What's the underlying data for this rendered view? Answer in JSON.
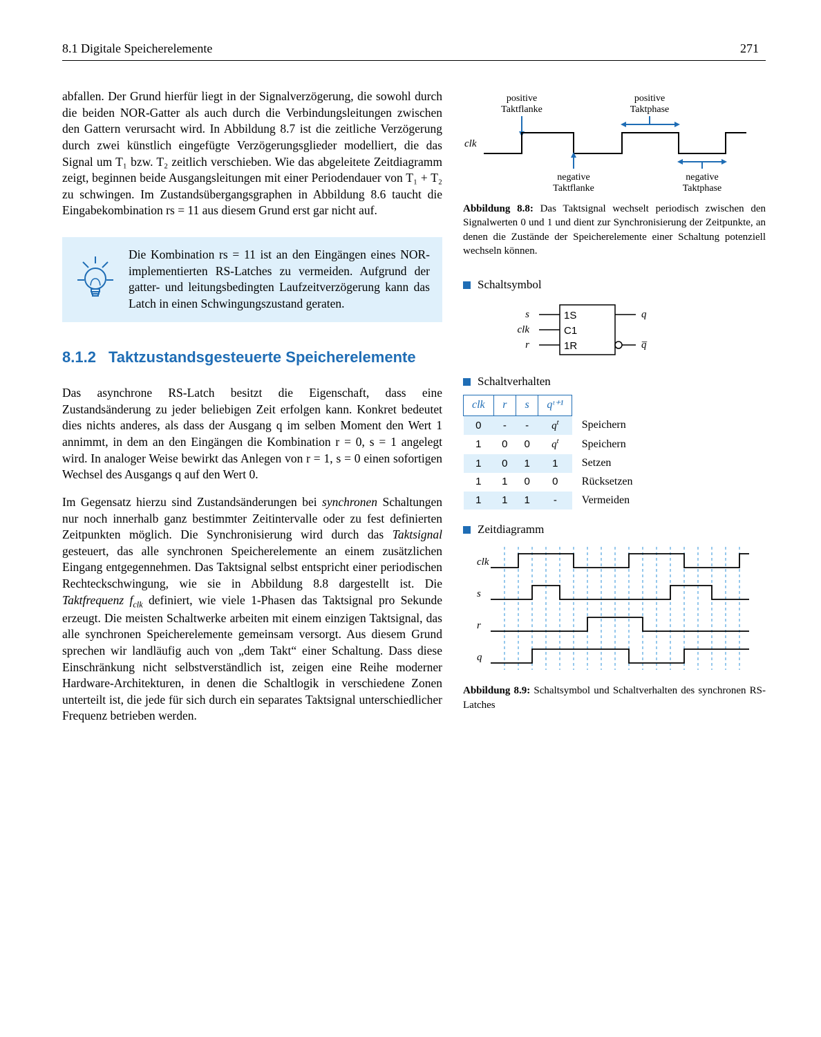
{
  "header": {
    "section": "8.1  Digitale Speicherelemente",
    "page": "271"
  },
  "left": {
    "para1": "abfallen. Der Grund hierfür liegt in der Signalverzögerung, die sowohl durch die beiden NOR-Gatter als auch durch die Verbindungsleitungen zwischen den Gattern verursacht wird. In Abbildung 8.7 ist die zeitliche Verzögerung durch zwei künstlich eingefügte Verzögerungsglieder modelliert, die das Signal um T₁ bzw. T₂ zeitlich verschieben. Wie das abgeleitete Zeitdiagramm zeigt, beginnen beide Ausgangsleitungen mit einer Periodendauer von T₁ + T₂ zu schwingen. Im Zustandsübergangsgraphen in Abbildung 8.6 taucht die Eingabekombination rs = 11 aus diesem Grund erst gar nicht auf.",
    "tip": "Die Kombination rs = 11 ist an den Eingängen eines NOR-implementierten RS-Latches zu vermeiden. Aufgrund der gatter- und leitungsbedingten Laufzeitverzögerung kann das Latch in einen Schwingungszustand geraten.",
    "heading_num": "8.1.2",
    "heading_text": "Taktzustandsgesteuerte Speicherelemente",
    "para2": "Das asynchrone RS-Latch besitzt die Eigenschaft, dass eine Zustandsänderung zu jeder beliebigen Zeit erfolgen kann. Konkret bedeutet dies nichts anderes, als dass der Ausgang q im selben Moment den Wert 1 annimmt, in dem an den Eingängen die Kombination r = 0, s = 1 angelegt wird. In analoger Weise bewirkt das Anlegen von r = 1, s = 0 einen sofortigen Wechsel des Ausgangs q auf den Wert 0.",
    "para3_a": "Im Gegensatz hierzu sind Zustandsänderungen bei ",
    "para3_b": "synchronen",
    "para3_c": " Schaltungen nur noch innerhalb ganz bestimmter Zeitintervalle oder zu fest definierten Zeitpunkten möglich. Die Synchronisierung wird durch das ",
    "para3_d": "Taktsignal",
    "para3_e": " gesteuert, das alle synchronen Speicherelemente an einem zusätzlichen Eingang entgegennehmen. Das Taktsignal selbst entspricht einer periodischen Rechteckschwingung, wie sie in Abbildung 8.8 dargestellt ist. Die ",
    "para3_f": "Taktfrequenz f",
    "para3_g": " definiert, wie viele 1-Phasen das Taktsignal pro Sekunde erzeugt. Die meisten Schaltwerke arbeiten mit einem einzigen Taktsignal, das alle synchronen Speicherelemente gemeinsam versorgt. Aus diesem Grund sprechen wir landläufig auch von „dem Takt“ einer Schaltung. Dass diese Einschränkung nicht selbstverständlich ist, zeigen eine Reihe moderner Hardware-Architekturen, in denen die Schaltlogik in verschiedene Zonen unterteilt ist, die jede für sich durch ein separates Taktsignal unterschiedlicher Frequenz betrieben werden."
  },
  "right": {
    "fig88": {
      "labels": {
        "pos_flanke": "positive\nTaktflanke",
        "pos_phase": "positive\nTaktphase",
        "neg_flanke": "negative\nTaktflanke",
        "neg_phase": "negative\nTaktphase",
        "clk": "clk"
      },
      "caption_tag": "Abbildung 8.8:",
      "caption": " Das Taktsignal wechselt periodisch zwischen den Signalwerten 0 und 1 und dient zur Synchronisierung der Zeitpunkte, an denen die Zustände der Speicherelemente einer Schaltung potenziell wechseln können.",
      "colors": {
        "accent": "#1f6db5",
        "line": "#000000"
      }
    },
    "markers": {
      "schaltsymbol": "Schaltsymbol",
      "schaltverhalten": "Schaltverhalten",
      "zeitdiagramm": "Zeitdiagramm"
    },
    "symbol": {
      "s": "s",
      "clk": "clk",
      "r": "r",
      "in_labels": [
        "1S",
        "C1",
        "1R"
      ],
      "q": "q",
      "qbar": "q"
    },
    "table": {
      "headers": [
        "clk",
        "r",
        "s",
        "qᵗ⁺¹"
      ],
      "rows": [
        {
          "cells": [
            "0",
            "-",
            "-",
            "qᵗ"
          ],
          "action": "Speichern",
          "shade": true
        },
        {
          "cells": [
            "1",
            "0",
            "0",
            "qᵗ"
          ],
          "action": "Speichern",
          "shade": false
        },
        {
          "cells": [
            "1",
            "0",
            "1",
            "1"
          ],
          "action": "Setzen",
          "shade": true
        },
        {
          "cells": [
            "1",
            "1",
            "0",
            "0"
          ],
          "action": "Rücksetzen",
          "shade": false
        },
        {
          "cells": [
            "1",
            "1",
            "1",
            "-"
          ],
          "action": "Vermeiden",
          "shade": true
        }
      ]
    },
    "timing": {
      "signals": [
        "clk",
        "s",
        "r",
        "q"
      ],
      "grid_color": "#4fa3df",
      "line_color": "#000000"
    },
    "fig89": {
      "caption_tag": "Abbildung 8.9:",
      "caption": " Schaltsymbol und Schaltverhalten des synchronen RS-Latches"
    }
  },
  "colors": {
    "accent": "#1f6db5",
    "tip_bg": "#dff0fb",
    "text": "#000000"
  }
}
